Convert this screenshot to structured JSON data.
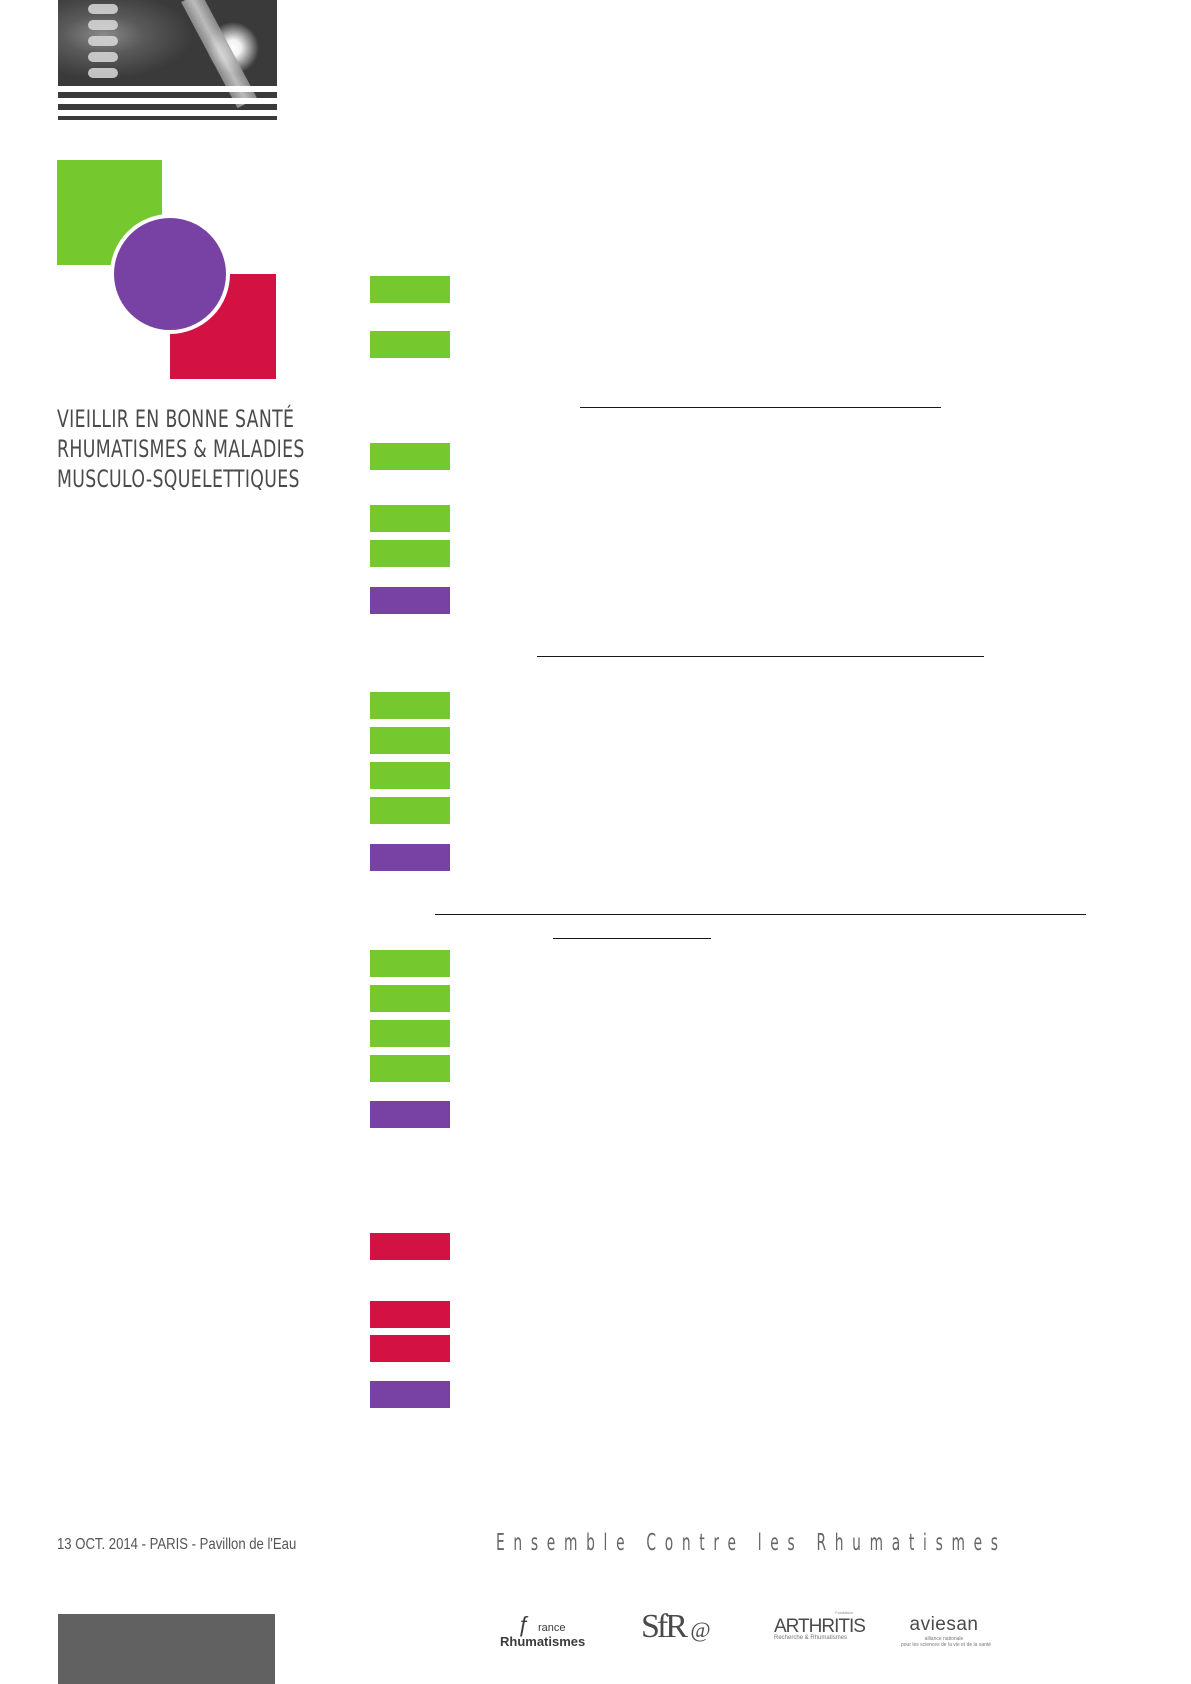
{
  "event": {
    "title_lines": [
      "VIEILLIR EN BONNE SANTÉ",
      "RHUMATISMES & MALADIES",
      "MUSCULO-SQUELETTIQUES"
    ],
    "date_line": "13 OCT. 2014 - PARIS - Pavillon de l'Eau",
    "slogan": "Ensemble Contre les Rhumatismes"
  },
  "colors": {
    "green": "#76c82f",
    "purple": "#7841a4",
    "red": "#d31143",
    "gray": "#616161"
  },
  "program": {
    "markers": [
      "green",
      "green",
      "green",
      "green",
      "green",
      "purple",
      "green",
      "green",
      "green",
      "green",
      "purple",
      "green",
      "green",
      "green",
      "green",
      "purple",
      "red",
      "red",
      "red",
      "purple"
    ]
  },
  "partners": {
    "france_rhumatismes": {
      "line1": "rance",
      "line2": "Rhumatismes"
    },
    "sfr": {
      "text": "SfR"
    },
    "arthritis": {
      "tiny": "Fondation",
      "name": "ARTHRITIS",
      "tagline": "Recherche & Rhumatismes"
    },
    "aviesan": {
      "name": "aviesan",
      "line1": "alliance nationale",
      "line2": "pour les sciences de la vie et de la santé"
    }
  }
}
